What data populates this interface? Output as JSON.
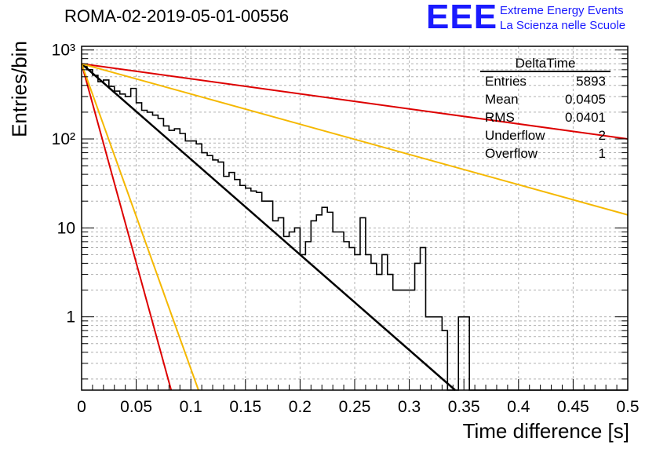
{
  "header": {
    "title": "ROMA-02-2019-05-01-00556",
    "logo_text": "EEE",
    "org_line1": "Extreme Energy Events",
    "org_line2": "La Scienza nelle Scuole"
  },
  "stats_box": {
    "title": "DeltaTime",
    "rows": [
      {
        "label": "Entries",
        "value": "5893"
      },
      {
        "label": "Mean",
        "value": "0.0405"
      },
      {
        "label": "RMS",
        "value": "0.0401"
      },
      {
        "label": "Underflow",
        "value": "2"
      },
      {
        "label": "Overflow",
        "value": "1"
      }
    ]
  },
  "chart_data": {
    "type": "histogram",
    "title": "ROMA-02-2019-05-01-00556",
    "xlabel": "Time difference [s]",
    "ylabel": "Entries/bin",
    "xlim": [
      0,
      0.5
    ],
    "ylim": [
      0.15,
      1100
    ],
    "yscale": "log",
    "grid": true,
    "x_ticks": [
      0,
      0.05,
      0.1,
      0.15,
      0.2,
      0.25,
      0.3,
      0.35,
      0.4,
      0.45,
      0.5
    ],
    "x_tick_labels": [
      "0",
      "0.05",
      "0.1",
      "0.15",
      "0.2",
      "0.25",
      "0.3",
      "0.35",
      "0.4",
      "0.45",
      "0.5"
    ],
    "y_tick_labels": [
      "1",
      "10",
      "10²",
      "10³"
    ],
    "bin_width": 0.005,
    "histogram": {
      "color": "#000000",
      "counts": [
        650,
        600,
        520,
        440,
        460,
        390,
        345,
        320,
        300,
        370,
        255,
        210,
        200,
        185,
        170,
        140,
        125,
        130,
        115,
        95,
        95,
        88,
        70,
        65,
        58,
        55,
        38,
        42,
        35,
        30,
        28,
        26,
        25,
        20,
        20,
        12,
        13,
        8,
        9,
        10,
        5,
        7,
        12,
        14,
        17,
        15,
        9,
        9,
        7,
        6,
        5,
        13,
        5,
        4,
        3,
        5,
        3,
        2,
        2,
        2,
        2,
        4,
        6,
        1,
        1,
        1,
        0.7,
        0.1,
        0.1,
        1,
        1,
        0.1,
        0.1,
        0.1,
        0.1,
        0.1,
        0.1,
        0.1,
        0.1,
        0.1,
        0.1,
        0.1,
        0.1,
        0.1,
        0.1,
        0.1,
        0.1,
        0.1,
        0.1,
        0.1,
        0.1,
        0.1,
        0.1,
        0.1,
        0.1,
        0.1,
        0.1,
        0.1,
        0.1,
        0.1
      ]
    },
    "fit_lines": [
      {
        "color": "#000000",
        "points": [
          [
            0,
            700
          ],
          [
            0.342,
            0.15
          ]
        ]
      },
      {
        "color": "#dd0000",
        "points": [
          [
            0,
            700
          ],
          [
            0.5,
            100
          ]
        ]
      },
      {
        "color": "#f5b800",
        "points": [
          [
            0,
            700
          ],
          [
            0.5,
            14
          ]
        ]
      },
      {
        "color": "#dd0000",
        "points": [
          [
            0,
            700
          ],
          [
            0.082,
            0.15
          ]
        ]
      },
      {
        "color": "#f5b800",
        "points": [
          [
            0,
            700
          ],
          [
            0.107,
            0.15
          ]
        ]
      }
    ]
  }
}
